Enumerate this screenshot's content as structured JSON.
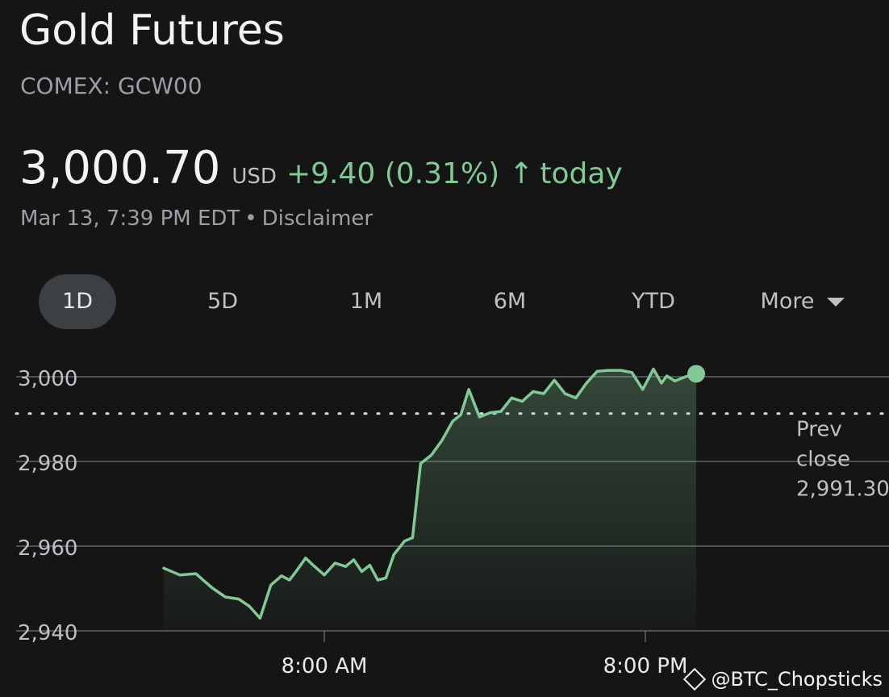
{
  "header": {
    "title": "Gold Futures",
    "ticker": "COMEX: GCW00",
    "price": "3,000.70",
    "currency": "USD",
    "change": "+9.40 (0.31%)",
    "change_suffix": "today",
    "timestamp": "Mar 13, 7:39 PM EDT",
    "separator": "•",
    "disclaimer": "Disclaimer"
  },
  "tabs": [
    {
      "label": "1D",
      "active": true
    },
    {
      "label": "5D",
      "active": false
    },
    {
      "label": "1M",
      "active": false
    },
    {
      "label": "6M",
      "active": false
    },
    {
      "label": "YTD",
      "active": false
    },
    {
      "label": "More",
      "active": false
    }
  ],
  "colors": {
    "background": "#151515",
    "line": "#81c995",
    "grid": "#5f6368",
    "positive": "#81c995"
  },
  "watermark": "@BTC_Chopsticks",
  "chart_data": {
    "type": "area",
    "y_ticks": [
      2940,
      2960,
      2980,
      3000
    ],
    "y_tick_labels": [
      "2,940",
      "2,960",
      "2,980",
      "3,000"
    ],
    "ylim": [
      2940,
      3000
    ],
    "x_ticks": [
      "8:00 AM",
      "8:00 PM"
    ],
    "prev_close": {
      "label": [
        "Prev",
        "close"
      ],
      "value": 2991.3,
      "value_label": "2,991.30"
    },
    "x_range_hours": [
      -6,
      24
    ],
    "series": [
      {
        "x": [
          -6.0,
          -5.4,
          -4.8,
          -4.2,
          -3.7,
          -3.2,
          -2.8,
          -2.4,
          -2.0,
          -1.6,
          -1.3,
          -1.0,
          -0.7,
          -0.4,
          0.0,
          0.4,
          0.8,
          1.1,
          1.4,
          1.7,
          2.0,
          2.3,
          2.6,
          3.0,
          3.3,
          3.6,
          4.0,
          4.4,
          4.8,
          5.1,
          5.4,
          5.8,
          6.2,
          6.6,
          7.0,
          7.4,
          7.8,
          8.2,
          8.6,
          9.0,
          9.4,
          9.8,
          10.2,
          10.6,
          10.8,
          11.1,
          11.5,
          11.9,
          12.3,
          12.6,
          12.8,
          13.1,
          13.5,
          13.9
        ],
        "values": [
          2954.8,
          2953.2,
          2953.5,
          2950.2,
          2948.0,
          2947.5,
          2945.8,
          2943.0,
          2950.8,
          2953.0,
          2952.0,
          2954.5,
          2957.2,
          2955.4,
          2953.2,
          2956.0,
          2955.2,
          2956.8,
          2954.0,
          2955.5,
          2952.0,
          2952.5,
          2958.0,
          2961.2,
          2962.0,
          2979.5,
          2981.5,
          2985.0,
          2989.5,
          2991.0,
          2997.0,
          2990.5,
          2991.5,
          2991.8,
          2995.0,
          2994.2,
          2996.5,
          2996.0,
          2999.2,
          2996.0,
          2995.0,
          2998.5,
          3001.3,
          3001.5,
          3001.5,
          3001.5,
          3001.0,
          2997.0,
          3001.8,
          2998.5,
          3000.2,
          2999.0,
          3000.0,
          3000.7
        ]
      }
    ]
  }
}
